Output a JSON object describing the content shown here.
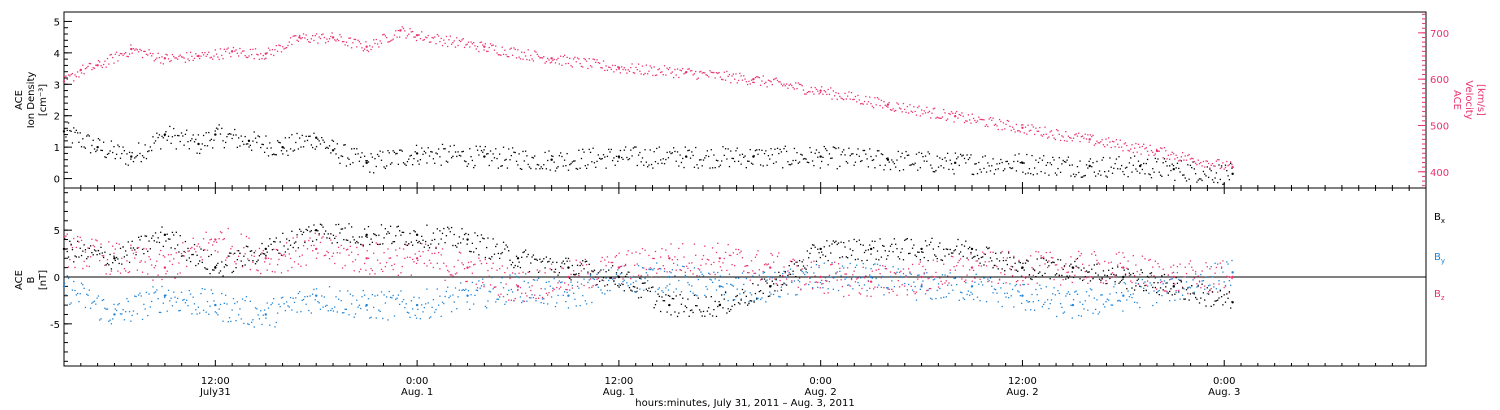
{
  "colors": {
    "black": "#000000",
    "pink": "#e8336d",
    "blue": "#1f84d6",
    "frame": "#000000",
    "bg": "#ffffff"
  },
  "x_axis": {
    "title": "hours:minutes, July 31, 2011 – Aug. 3, 2011",
    "start": "2011-07-31T03:00",
    "end": "2011-08-03T12:00",
    "ticks": [
      {
        "t": "2011-07-31T12:00",
        "line1": "12:00",
        "line2": "July31"
      },
      {
        "t": "2011-08-01T00:00",
        "line1": "0:00",
        "line2": "Aug. 1"
      },
      {
        "t": "2011-08-01T12:00",
        "line1": "12:00",
        "line2": "Aug. 1"
      },
      {
        "t": "2011-08-02T00:00",
        "line1": "0:00",
        "line2": "Aug. 2"
      },
      {
        "t": "2011-08-02T12:00",
        "line1": "12:00",
        "line2": "Aug. 2"
      },
      {
        "t": "2011-08-03T00:00",
        "line1": "0:00",
        "line2": "Aug. 3"
      }
    ]
  },
  "top_panel": {
    "left_label": [
      "ACE",
      "Ion Density",
      "[cm⁻³]"
    ],
    "right_label": [
      "ACE",
      "Velocity",
      "[km/s]"
    ]
  },
  "bottom_panel": {
    "left_label": [
      "ACE",
      "B",
      "[nT]"
    ],
    "legend": [
      {
        "label": "Bx",
        "main": "B",
        "sub": "x",
        "color": "#000000"
      },
      {
        "label": "By",
        "main": "B",
        "sub": "y",
        "color": "#1f84d6"
      },
      {
        "label": "Bz",
        "main": "B",
        "sub": "z",
        "color": "#e8336d"
      }
    ]
  },
  "chart_data": [
    {
      "type": "scatter",
      "title": "",
      "xlabel": "hours:minutes, July 31, 2011 – Aug. 3, 2011",
      "ylabel": "ACE Ion Density [cm⁻³]",
      "ylim": [
        -0.3,
        5.3
      ],
      "yticks": [
        0,
        1,
        2,
        3,
        4,
        5
      ],
      "secondary_ylabel": "ACE Velocity [km/s]",
      "secondary_ylim": [
        365,
        745
      ],
      "secondary_yticks": [
        400,
        500,
        600,
        700
      ],
      "series": [
        {
          "name": "Ion Density",
          "color": "#000000",
          "axis": "left",
          "x": [
            "2011-07-31T03:00",
            "2011-07-31T05:00",
            "2011-07-31T07:00",
            "2011-07-31T09:00",
            "2011-07-31T11:00",
            "2011-07-31T12:00",
            "2011-07-31T14:00",
            "2011-07-31T16:00",
            "2011-07-31T18:00",
            "2011-07-31T19:00",
            "2011-07-31T21:00",
            "2011-08-01T00:00",
            "2011-08-01T04:00",
            "2011-08-01T08:00",
            "2011-08-01T12:00",
            "2011-08-01T16:00",
            "2011-08-01T20:00",
            "2011-08-02T00:00",
            "2011-08-02T04:00",
            "2011-08-02T08:00",
            "2011-08-02T12:00",
            "2011-08-02T16:00",
            "2011-08-02T19:00",
            "2011-08-02T21:00",
            "2011-08-03T00:30"
          ],
          "y": [
            1.5,
            1.0,
            0.7,
            1.4,
            1.1,
            1.4,
            1.2,
            1.0,
            1.3,
            0.9,
            0.5,
            0.8,
            0.7,
            0.6,
            0.7,
            0.7,
            0.7,
            0.7,
            0.6,
            0.5,
            0.5,
            0.4,
            0.4,
            0.3,
            0.15
          ]
        },
        {
          "name": "Velocity",
          "color": "#e8336d",
          "axis": "right",
          "x": [
            "2011-07-31T03:00",
            "2011-07-31T04:00",
            "2011-07-31T05:00",
            "2011-07-31T07:00",
            "2011-07-31T09:00",
            "2011-07-31T11:00",
            "2011-07-31T13:00",
            "2011-07-31T15:00",
            "2011-07-31T17:00",
            "2011-07-31T19:00",
            "2011-07-31T21:00",
            "2011-07-31T23:00",
            "2011-08-01T00:00",
            "2011-08-01T04:00",
            "2011-08-01T08:00",
            "2011-08-01T12:00",
            "2011-08-01T16:00",
            "2011-08-01T20:00",
            "2011-08-02T00:00",
            "2011-08-02T04:00",
            "2011-08-02T08:00",
            "2011-08-02T12:00",
            "2011-08-02T16:00",
            "2011-08-02T20:00",
            "2011-08-03T00:30"
          ],
          "y": [
            595,
            620,
            630,
            665,
            645,
            650,
            660,
            655,
            690,
            690,
            670,
            705,
            695,
            670,
            645,
            625,
            615,
            600,
            575,
            545,
            520,
            495,
            470,
            445,
            410
          ]
        }
      ]
    },
    {
      "type": "scatter",
      "title": "",
      "xlabel": "hours:minutes, July 31, 2011 – Aug. 3, 2011",
      "ylabel": "ACE B [nT]",
      "ylim": [
        -9.5,
        9.5
      ],
      "yticks": [
        -5,
        0,
        5
      ],
      "series": [
        {
          "name": "Bx",
          "color": "#000000",
          "x": [
            "2011-07-31T03:00",
            "2011-07-31T06:00",
            "2011-07-31T09:00",
            "2011-07-31T12:00",
            "2011-07-31T15:00",
            "2011-07-31T18:00",
            "2011-07-31T21:00",
            "2011-08-01T00:00",
            "2011-08-01T03:00",
            "2011-08-01T06:00",
            "2011-08-01T09:00",
            "2011-08-01T12:00",
            "2011-08-01T15:00",
            "2011-08-01T18:00",
            "2011-08-01T21:00",
            "2011-08-02T00:00",
            "2011-08-02T03:00",
            "2011-08-02T06:00",
            "2011-08-02T09:00",
            "2011-08-02T12:00",
            "2011-08-02T15:00",
            "2011-08-02T18:00",
            "2011-08-02T21:00",
            "2011-08-03T00:30"
          ],
          "y": [
            3,
            2,
            4.5,
            1,
            3,
            5,
            4.5,
            4.5,
            4,
            2,
            1,
            0,
            -3,
            -3,
            -1,
            3,
            3,
            3,
            3,
            1,
            1,
            0,
            -1,
            -2.7
          ]
        },
        {
          "name": "By",
          "color": "#1f84d6",
          "x": [
            "2011-07-31T03:00",
            "2011-07-31T06:00",
            "2011-07-31T09:00",
            "2011-07-31T12:00",
            "2011-07-31T15:00",
            "2011-07-31T18:00",
            "2011-07-31T21:00",
            "2011-08-01T00:00",
            "2011-08-01T03:00",
            "2011-08-01T06:00",
            "2011-08-01T09:00",
            "2011-08-01T12:00",
            "2011-08-01T15:00",
            "2011-08-01T18:00",
            "2011-08-01T21:00",
            "2011-08-02T00:00",
            "2011-08-02T03:00",
            "2011-08-02T06:00",
            "2011-08-02T09:00",
            "2011-08-02T12:00",
            "2011-08-02T15:00",
            "2011-08-02T18:00",
            "2011-08-02T21:00",
            "2011-08-03T00:30"
          ],
          "y": [
            -1,
            -4,
            -2,
            -3,
            -4,
            -2,
            -3,
            -3,
            -2,
            -1,
            -2,
            0,
            0,
            -1,
            -1,
            0,
            0,
            -1,
            -1,
            -2,
            -3,
            -2,
            -1,
            0.5
          ]
        },
        {
          "name": "Bz",
          "color": "#e8336d",
          "x": [
            "2011-07-31T03:00",
            "2011-07-31T06:00",
            "2011-07-31T09:00",
            "2011-07-31T12:00",
            "2011-07-31T15:00",
            "2011-07-31T18:00",
            "2011-07-31T21:00",
            "2011-08-01T00:00",
            "2011-08-01T03:00",
            "2011-08-01T06:00",
            "2011-08-01T09:00",
            "2011-08-01T12:00",
            "2011-08-01T15:00",
            "2011-08-01T18:00",
            "2011-08-01T21:00",
            "2011-08-02T00:00",
            "2011-08-02T03:00",
            "2011-08-02T06:00",
            "2011-08-02T09:00",
            "2011-08-02T12:00",
            "2011-08-02T15:00",
            "2011-08-02T18:00",
            "2011-08-02T21:00",
            "2011-08-03T00:30"
          ],
          "y": [
            3,
            2,
            1,
            4,
            2,
            3,
            2,
            2,
            1,
            -1,
            0,
            1,
            2,
            2,
            1,
            0,
            -0.5,
            0,
            1,
            1,
            1,
            1,
            0,
            0
          ]
        }
      ]
    }
  ]
}
